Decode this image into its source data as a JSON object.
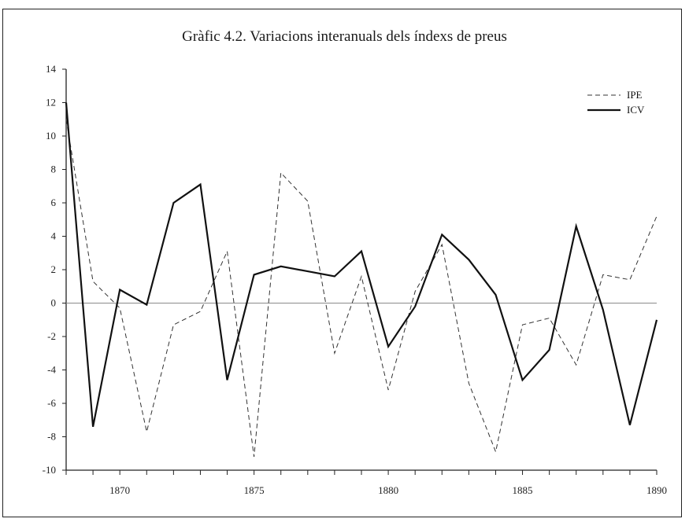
{
  "chart_data": {
    "type": "line",
    "title": "Gràfic 4.2. Variacions interanuals dels índexs de preus",
    "xlabel": "",
    "ylabel": "",
    "x": [
      1868,
      1869,
      1870,
      1871,
      1872,
      1873,
      1874,
      1875,
      1876,
      1877,
      1878,
      1879,
      1880,
      1881,
      1882,
      1883,
      1884,
      1885,
      1886,
      1887,
      1888,
      1889,
      1890
    ],
    "xlim": [
      1868,
      1890
    ],
    "ylim": [
      -10,
      14
    ],
    "xticks": [
      1870,
      1875,
      1880,
      1885,
      1890
    ],
    "yticks": [
      14,
      12,
      10,
      8,
      6,
      4,
      2,
      0,
      -2,
      -4,
      -6,
      -8,
      -10
    ],
    "grid": false,
    "zero_line": true,
    "legend_position": "top-right",
    "series": [
      {
        "name": "IPE",
        "style": "dashed",
        "color": "#333333",
        "values": [
          11.0,
          1.3,
          -0.3,
          -7.7,
          -1.3,
          -0.5,
          3.1,
          -9.2,
          7.8,
          6.1,
          -3.0,
          1.6,
          -5.2,
          0.7,
          3.5,
          -4.8,
          -8.9,
          -1.3,
          -0.9,
          -3.7,
          1.7,
          1.4,
          5.2
        ]
      },
      {
        "name": "ICV",
        "style": "solid",
        "color": "#111111",
        "values": [
          12.0,
          -7.4,
          0.8,
          -0.1,
          6.0,
          7.1,
          -4.6,
          1.7,
          2.2,
          1.9,
          1.6,
          3.1,
          -2.6,
          -0.2,
          4.1,
          2.6,
          0.5,
          -4.6,
          -2.8,
          4.6,
          -0.4,
          -7.3,
          -1.0
        ]
      }
    ]
  }
}
